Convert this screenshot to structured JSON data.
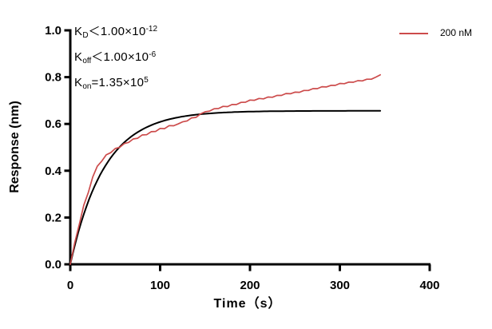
{
  "figure": {
    "background": "#ffffff"
  },
  "legend": {
    "label": "200 nM",
    "line_color": "#cc4b4b"
  },
  "chart_data": {
    "type": "line",
    "title": "",
    "xlabel": "Time（s）",
    "ylabel": "Response (nm)",
    "xlim": [
      0,
      400
    ],
    "ylim": [
      0,
      1.0
    ],
    "xticks": [
      0,
      100,
      200,
      300,
      400
    ],
    "yticks": [
      "0.0",
      "0.2",
      "0.4",
      "0.6",
      "0.8",
      "1.0"
    ],
    "grid": false,
    "legend_position": "top-right",
    "axis_color": "#000000",
    "annotations": [
      {
        "base": "K",
        "sub": "D",
        "mid": "＜1.00×10",
        "sup": "-12"
      },
      {
        "base": "K",
        "sub": "off",
        "mid": "＜1.00×10",
        "sup": "-6"
      },
      {
        "base": "K",
        "sub": "on",
        "mid": "=1.35×10",
        "sup": "5"
      }
    ],
    "series": [
      {
        "name": "200 nM",
        "role": "measured",
        "color": "#cc4b4b",
        "points": [
          [
            0,
            0.0
          ],
          [
            5,
            0.093
          ],
          [
            10,
            0.171
          ],
          [
            15,
            0.253
          ],
          [
            20,
            0.306
          ],
          [
            25,
            0.373
          ],
          [
            30,
            0.419
          ],
          [
            35,
            0.441
          ],
          [
            40,
            0.468
          ],
          [
            45,
            0.477
          ],
          [
            50,
            0.495
          ],
          [
            55,
            0.5
          ],
          [
            60,
            0.516
          ],
          [
            65,
            0.521
          ],
          [
            70,
            0.536
          ],
          [
            75,
            0.539
          ],
          [
            80,
            0.553
          ],
          [
            85,
            0.554
          ],
          [
            90,
            0.567
          ],
          [
            95,
            0.568
          ],
          [
            100,
            0.581
          ],
          [
            105,
            0.58
          ],
          [
            110,
            0.593
          ],
          [
            115,
            0.592
          ],
          [
            120,
            0.6
          ],
          [
            125,
            0.609
          ],
          [
            130,
            0.613
          ],
          [
            135,
            0.626
          ],
          [
            140,
            0.628
          ],
          [
            145,
            0.643
          ],
          [
            150,
            0.652
          ],
          [
            155,
            0.655
          ],
          [
            160,
            0.665
          ],
          [
            165,
            0.666
          ],
          [
            170,
            0.675
          ],
          [
            175,
            0.674
          ],
          [
            180,
            0.683
          ],
          [
            185,
            0.683
          ],
          [
            190,
            0.692
          ],
          [
            195,
            0.693
          ],
          [
            200,
            0.702
          ],
          [
            205,
            0.701
          ],
          [
            210,
            0.709
          ],
          [
            215,
            0.707
          ],
          [
            220,
            0.715
          ],
          [
            225,
            0.714
          ],
          [
            230,
            0.722
          ],
          [
            235,
            0.722
          ],
          [
            240,
            0.73
          ],
          [
            245,
            0.729
          ],
          [
            250,
            0.736
          ],
          [
            255,
            0.735
          ],
          [
            260,
            0.743
          ],
          [
            265,
            0.743
          ],
          [
            270,
            0.751
          ],
          [
            275,
            0.751
          ],
          [
            280,
            0.759
          ],
          [
            285,
            0.758
          ],
          [
            290,
            0.765
          ],
          [
            295,
            0.765
          ],
          [
            300,
            0.773
          ],
          [
            305,
            0.772
          ],
          [
            310,
            0.779
          ],
          [
            315,
            0.778
          ],
          [
            320,
            0.785
          ],
          [
            325,
            0.784
          ],
          [
            330,
            0.791
          ],
          [
            335,
            0.791
          ],
          [
            340,
            0.8
          ],
          [
            345,
            0.81
          ]
        ]
      },
      {
        "name": "fit",
        "role": "fit-curve",
        "color": "#000000",
        "model": "one-phase-association",
        "plateau": 0.656,
        "tau_s": 38,
        "t_start": 0,
        "t_end": 345
      }
    ]
  }
}
